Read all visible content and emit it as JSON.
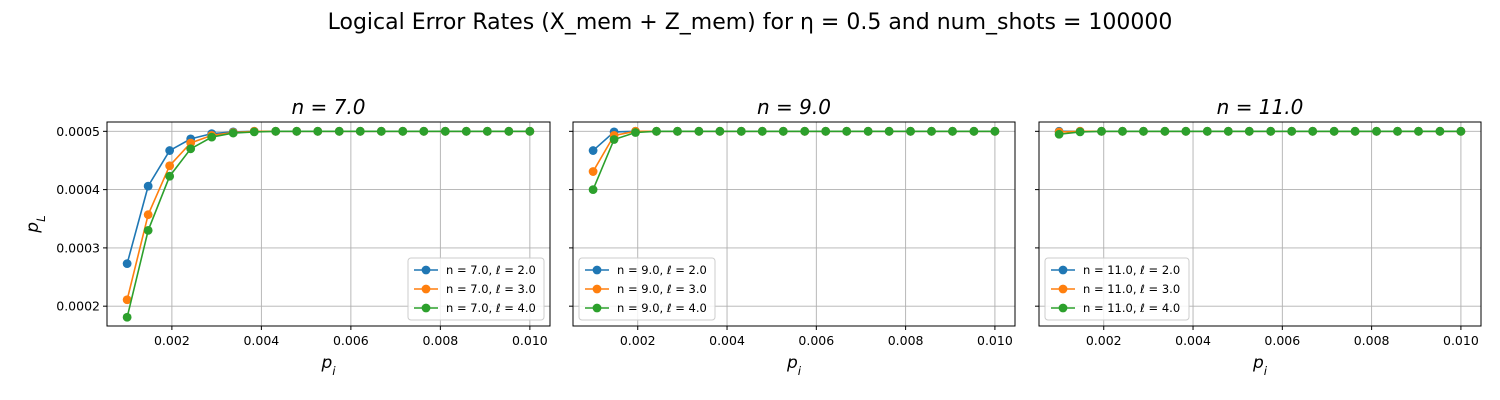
{
  "figure": {
    "title": "Logical Error Rates (X_mem + Z_mem) for η = 0.5 and num_shots = 100000"
  },
  "colors": {
    "series": [
      "#1f77b4",
      "#ff7f0e",
      "#2ca02c"
    ],
    "grid": "#b0b0b0"
  },
  "chart_data": [
    {
      "type": "line",
      "title": "n = 7.0",
      "xlabel": "p_i",
      "ylabel": "p_L",
      "xlim": [
        0.00055,
        0.01045
      ],
      "ylim": [
        0.000166,
        0.000516
      ],
      "xticks": [
        0.002,
        0.004,
        0.006,
        0.008,
        0.01
      ],
      "xtick_labels": [
        "0.002",
        "0.004",
        "0.006",
        "0.008",
        "0.010"
      ],
      "yticks": [
        0.0002,
        0.0003,
        0.0004,
        0.0005
      ],
      "ytick_labels": [
        "0.0002",
        "0.0003",
        "0.0004",
        "0.0005"
      ],
      "grid": true,
      "legend": "lower-right",
      "x": [
        0.001,
        0.00147,
        0.00195,
        0.00242,
        0.00289,
        0.00337,
        0.00384,
        0.00432,
        0.00479,
        0.00526,
        0.00574,
        0.00621,
        0.00668,
        0.00716,
        0.00763,
        0.00811,
        0.00858,
        0.00905,
        0.00953,
        0.01
      ],
      "series": [
        {
          "name": "n = 7.0, ℓ = 2.0",
          "values": [
            0.000273,
            0.000406,
            0.000467,
            0.000487,
            0.000496,
            0.000499,
            0.0005,
            0.0005,
            0.0005,
            0.0005,
            0.0005,
            0.0005,
            0.0005,
            0.0005,
            0.0005,
            0.0005,
            0.0005,
            0.0005,
            0.0005,
            0.0005
          ]
        },
        {
          "name": "n = 7.0, ℓ = 3.0",
          "values": [
            0.000211,
            0.000357,
            0.000441,
            0.00048,
            0.000493,
            0.000498,
            0.0005,
            0.0005,
            0.0005,
            0.0005,
            0.0005,
            0.0005,
            0.0005,
            0.0005,
            0.0005,
            0.0005,
            0.0005,
            0.0005,
            0.0005,
            0.0005
          ]
        },
        {
          "name": "n = 7.0, ℓ = 4.0",
          "values": [
            0.000181,
            0.00033,
            0.000423,
            0.00047,
            0.00049,
            0.000497,
            0.000499,
            0.0005,
            0.0005,
            0.0005,
            0.0005,
            0.0005,
            0.0005,
            0.0005,
            0.0005,
            0.0005,
            0.0005,
            0.0005,
            0.0005,
            0.0005
          ]
        }
      ]
    },
    {
      "type": "line",
      "title": "n = 9.0",
      "xlabel": "p_i",
      "ylabel": "",
      "xlim": [
        0.00055,
        0.01045
      ],
      "ylim": [
        0.000166,
        0.000516
      ],
      "xticks": [
        0.002,
        0.004,
        0.006,
        0.008,
        0.01
      ],
      "xtick_labels": [
        "0.002",
        "0.004",
        "0.006",
        "0.008",
        "0.010"
      ],
      "yticks": [
        0.0002,
        0.0003,
        0.0004,
        0.0005
      ],
      "ytick_labels": [],
      "grid": true,
      "legend": "lower-left",
      "x": [
        0.001,
        0.00147,
        0.00195,
        0.00242,
        0.00289,
        0.00337,
        0.00384,
        0.00432,
        0.00479,
        0.00526,
        0.00574,
        0.00621,
        0.00668,
        0.00716,
        0.00763,
        0.00811,
        0.00858,
        0.00905,
        0.00953,
        0.01
      ],
      "series": [
        {
          "name": "n = 9.0, ℓ = 2.0",
          "values": [
            0.000467,
            0.000499,
            0.0005,
            0.0005,
            0.0005,
            0.0005,
            0.0005,
            0.0005,
            0.0005,
            0.0005,
            0.0005,
            0.0005,
            0.0005,
            0.0005,
            0.0005,
            0.0005,
            0.0005,
            0.0005,
            0.0005,
            0.0005
          ]
        },
        {
          "name": "n = 9.0, ℓ = 3.0",
          "values": [
            0.000431,
            0.000493,
            0.0005,
            0.0005,
            0.0005,
            0.0005,
            0.0005,
            0.0005,
            0.0005,
            0.0005,
            0.0005,
            0.0005,
            0.0005,
            0.0005,
            0.0005,
            0.0005,
            0.0005,
            0.0005,
            0.0005,
            0.0005
          ]
        },
        {
          "name": "n = 9.0, ℓ = 4.0",
          "values": [
            0.0004,
            0.000486,
            0.000498,
            0.0005,
            0.0005,
            0.0005,
            0.0005,
            0.0005,
            0.0005,
            0.0005,
            0.0005,
            0.0005,
            0.0005,
            0.0005,
            0.0005,
            0.0005,
            0.0005,
            0.0005,
            0.0005,
            0.0005
          ]
        }
      ]
    },
    {
      "type": "line",
      "title": "n = 11.0",
      "xlabel": "p_i",
      "ylabel": "",
      "xlim": [
        0.00055,
        0.01045
      ],
      "ylim": [
        0.000166,
        0.000516
      ],
      "xticks": [
        0.002,
        0.004,
        0.006,
        0.008,
        0.01
      ],
      "xtick_labels": [
        "0.002",
        "0.004",
        "0.006",
        "0.008",
        "0.010"
      ],
      "yticks": [
        0.0002,
        0.0003,
        0.0004,
        0.0005
      ],
      "ytick_labels": [],
      "grid": true,
      "legend": "lower-left",
      "x": [
        0.001,
        0.00147,
        0.00195,
        0.00242,
        0.00289,
        0.00337,
        0.00384,
        0.00432,
        0.00479,
        0.00526,
        0.00574,
        0.00621,
        0.00668,
        0.00716,
        0.00763,
        0.00811,
        0.00858,
        0.00905,
        0.00953,
        0.01
      ],
      "series": [
        {
          "name": "n = 11.0, ℓ = 2.0",
          "values": [
            0.0005,
            0.0005,
            0.0005,
            0.0005,
            0.0005,
            0.0005,
            0.0005,
            0.0005,
            0.0005,
            0.0005,
            0.0005,
            0.0005,
            0.0005,
            0.0005,
            0.0005,
            0.0005,
            0.0005,
            0.0005,
            0.0005,
            0.0005
          ]
        },
        {
          "name": "n = 11.0, ℓ = 3.0",
          "values": [
            0.000499,
            0.0005,
            0.0005,
            0.0005,
            0.0005,
            0.0005,
            0.0005,
            0.0005,
            0.0005,
            0.0005,
            0.0005,
            0.0005,
            0.0005,
            0.0005,
            0.0005,
            0.0005,
            0.0005,
            0.0005,
            0.0005,
            0.0005
          ]
        },
        {
          "name": "n = 11.0, ℓ = 4.0",
          "values": [
            0.000495,
            0.000499,
            0.0005,
            0.0005,
            0.0005,
            0.0005,
            0.0005,
            0.0005,
            0.0005,
            0.0005,
            0.0005,
            0.0005,
            0.0005,
            0.0005,
            0.0005,
            0.0005,
            0.0005,
            0.0005,
            0.0005,
            0.0005
          ]
        }
      ]
    }
  ]
}
